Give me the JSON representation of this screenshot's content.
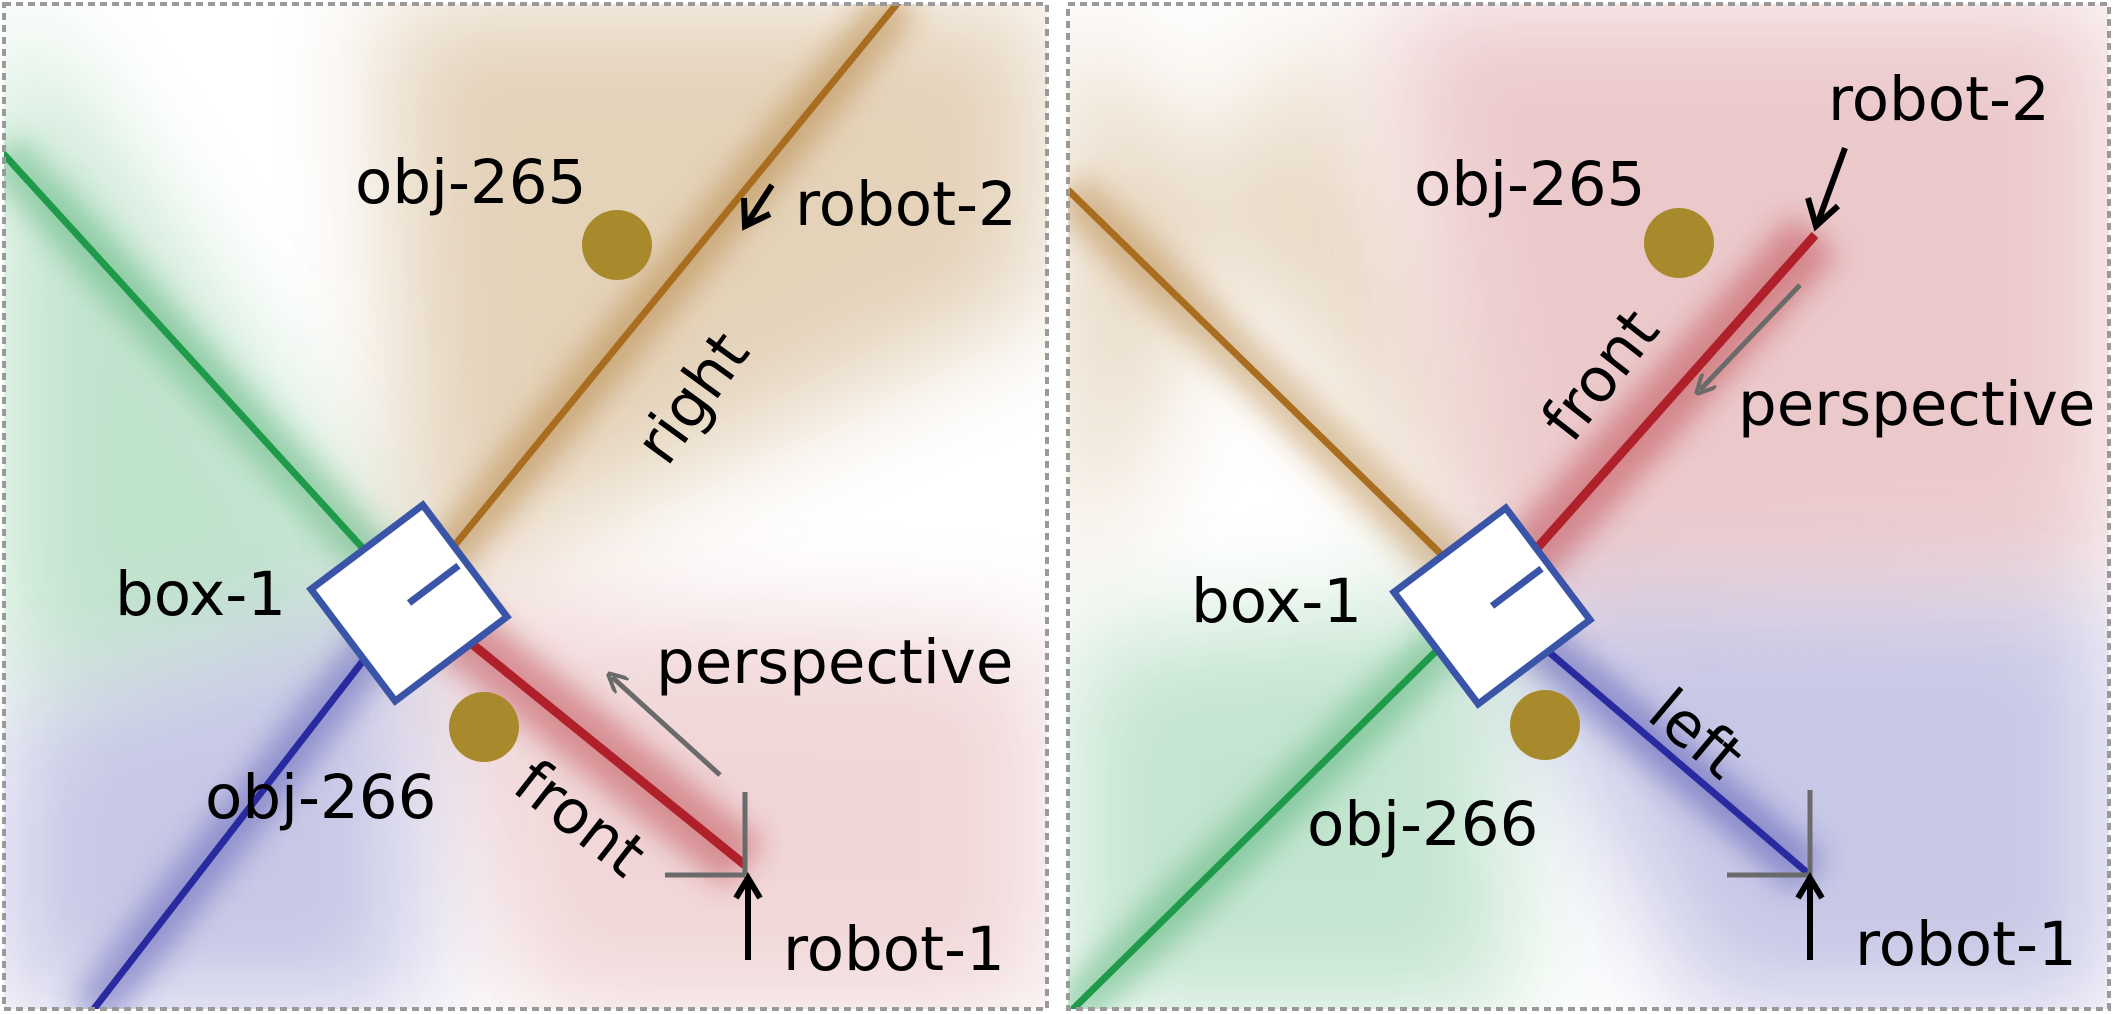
{
  "panels": [
    {
      "id": "left",
      "labels": {
        "obj_265": "obj-265",
        "robot_2": "robot-2",
        "right": "right",
        "box_1": "box-1",
        "perspective": "perspective",
        "obj_266": "obj-266",
        "front": "front",
        "robot_1": "robot-1"
      }
    },
    {
      "id": "right",
      "labels": {
        "robot_2": "robot-2",
        "obj_265": "obj-265",
        "front": "front",
        "perspective": "perspective",
        "box_1": "box-1",
        "left": "left",
        "obj_266": "obj-266",
        "robot_1": "robot-1"
      }
    }
  ],
  "colors": {
    "green": "#1e9a4a",
    "brown": "#a86d1e",
    "red": "#b0202a",
    "blue": "#2a2aa0",
    "object": "#a88a2c",
    "box_stroke": "#3a55a8",
    "arrow_gray": "#6a6a6a",
    "frame": "#9a9a9a"
  }
}
